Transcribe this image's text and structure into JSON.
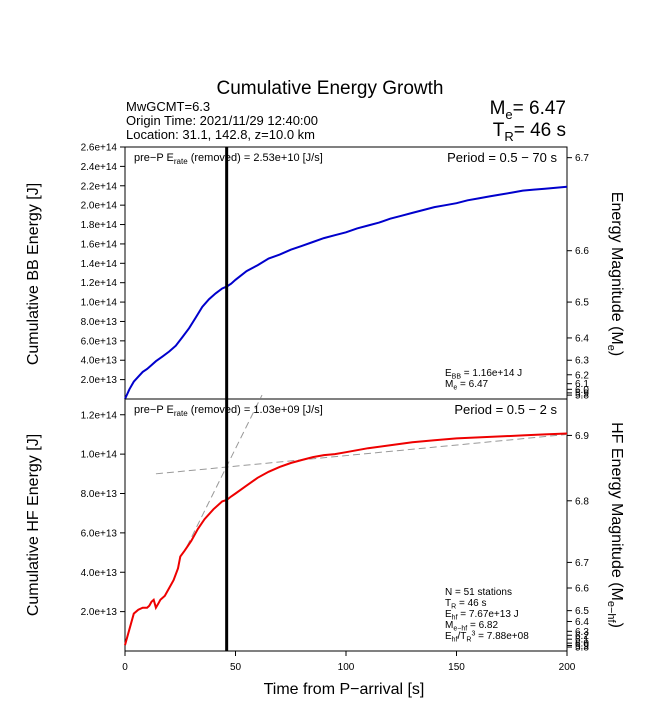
{
  "chart_data": {
    "title": "Cumulative Energy Growth",
    "info": {
      "event": "MwGCMT=6.3",
      "origin": "Origin Time: 2021/11/29 12:40:00",
      "location": "Location: 31.1, 142.8, z=10.0 km"
    },
    "summary": {
      "me_prefix": "M",
      "me_sub": "e",
      "me_value": "= 6.47",
      "tr_prefix": "T",
      "tr_sub": "R",
      "tr_value": "= 46 s"
    },
    "xlabel": "Time from P−arrival [s]",
    "xlim": [
      0,
      200
    ],
    "x_ticks": [
      "0",
      "50",
      "100",
      "150",
      "200"
    ],
    "x_tick_values": [
      0,
      50,
      100,
      150,
      200
    ],
    "vline_x": 46,
    "panels": [
      {
        "type": "line",
        "ylabel": "Cumulative BB Energy [J]",
        "y2label": "Energy Magnitude (M",
        "y2label_sub": "e",
        "y2label_end": ")",
        "ylim": [
          0,
          260000000000000.0
        ],
        "y_ticks": [
          "2.0e+13",
          "4.0e+13",
          "6.0e+13",
          "8.0e+13",
          "1.0e+14",
          "1.2e+14",
          "1.4e+14",
          "1.6e+14",
          "1.8e+14",
          "2.0e+14",
          "2.2e+14",
          "2.4e+14",
          "2.6e+14"
        ],
        "y_tick_values": [
          20000000000000.0,
          40000000000000.0,
          60000000000000.0,
          80000000000000.0,
          100000000000000.0,
          120000000000000.0,
          140000000000000.0,
          160000000000000.0,
          180000000000000.0,
          200000000000000.0,
          220000000000000.0,
          240000000000000.0,
          260000000000000.0
        ],
        "y2_ticks": [
          "6.7",
          "6.6",
          "6.5",
          "6.4",
          "6.3",
          "6.2",
          "6.1",
          "6.0",
          "5.9",
          "5.8"
        ],
        "y2_tick_values": [
          249000000000000.0,
          153000000000000.0,
          100000000000000.0,
          63000000000000.0,
          40000000000000.0,
          25000000000000.0,
          15800000000000.0,
          10000000000000.0,
          6300000000000.0,
          4000000000000.0
        ],
        "prep_label": "pre−P E",
        "prep_sub": "rate",
        "prep_rest": " (removed) = 2.53e+10 [J/s]",
        "period": "Period = 0.5 − 70 s",
        "notes": [
          {
            "main": "E",
            "sub": "BB",
            "rest": " = 1.16e+14 J"
          },
          {
            "main": "M",
            "sub": "e",
            "rest": " = 6.47"
          }
        ],
        "series": {
          "color": "#0000cc",
          "x": [
            0,
            2,
            4,
            6,
            8,
            10,
            12,
            14,
            17,
            20,
            23,
            26,
            29,
            32,
            35,
            38,
            41,
            44,
            46,
            48,
            50,
            55,
            60,
            65,
            70,
            75,
            80,
            85,
            90,
            95,
            100,
            105,
            110,
            115,
            120,
            125,
            130,
            135,
            140,
            145,
            150,
            155,
            160,
            165,
            170,
            175,
            180,
            185,
            190,
            195,
            200
          ],
          "y": [
            0,
            10000000000000.0,
            18000000000000.0,
            23000000000000.0,
            28000000000000.0,
            31000000000000.0,
            35000000000000.0,
            39000000000000.0,
            44000000000000.0,
            49000000000000.0,
            55000000000000.0,
            64000000000000.0,
            73000000000000.0,
            84000000000000.0,
            95000000000000.0,
            103000000000000.0,
            109000000000000.0,
            114000000000000.0,
            116000000000000.0,
            119000000000000.0,
            123000000000000.0,
            132000000000000.0,
            138000000000000.0,
            145000000000000.0,
            149000000000000.0,
            154000000000000.0,
            158000000000000.0,
            162000000000000.0,
            166000000000000.0,
            169000000000000.0,
            172000000000000.0,
            176000000000000.0,
            179000000000000.0,
            182000000000000.0,
            186000000000000.0,
            189000000000000.0,
            192000000000000.0,
            195000000000000.0,
            198000000000000.0,
            200000000000000.0,
            202000000000000.0,
            205000000000000.0,
            207000000000000.0,
            209000000000000.0,
            211000000000000.0,
            213000000000000.0,
            215000000000000.0,
            216000000000000.0,
            217000000000000.0,
            218000000000000.0,
            219000000000000.0
          ]
        }
      },
      {
        "type": "line",
        "ylabel": "Cumulative HF Energy [J]",
        "y2label": "HF Energy Magnitude (M",
        "y2label_sub": "e−hf",
        "y2label_end": ")",
        "ylim": [
          0,
          128000000000000.0
        ],
        "y_ticks": [
          "2.0e+13",
          "4.0e+13",
          "6.0e+13",
          "8.0e+13",
          "1.0e+14",
          "1.2e+14"
        ],
        "y_tick_values": [
          20000000000000.0,
          40000000000000.0,
          60000000000000.0,
          80000000000000.0,
          100000000000000.0,
          120000000000000.0
        ],
        "y2_ticks": [
          "6.9",
          "6.8",
          "6.7",
          "6.6",
          "6.5",
          "6.4",
          "6.3",
          "6.2",
          "6.1",
          "6.0",
          "5.9",
          "5.8"
        ],
        "y2_tick_values": [
          109500000000000.0,
          76300000000000.0,
          45000000000000.0,
          32000000000000.0,
          20500000000000.0,
          15000000000000.0,
          10000000000000.0,
          8000000000000.0,
          6000000000000.0,
          4000000000000.0,
          2800000000000.0,
          2000000000000.0
        ],
        "prep_label": "pre−P E",
        "prep_sub": "rate",
        "prep_rest": " (removed) = 1.03e+09 [J/s]",
        "period": "Period = 0.5 − 2 s",
        "notes": [
          {
            "main": "N = 51 stations",
            "sub": "",
            "rest": ""
          },
          {
            "main": "T",
            "sub": "R",
            "rest": " = 46  s"
          },
          {
            "main": "E",
            "sub": "hf",
            "rest": " = 7.67e+13 J"
          },
          {
            "main": "M",
            "sub": "e−hf",
            "rest": " = 6.82"
          },
          {
            "main": "E",
            "sub": "hf",
            "rest": "/T",
            "sub2": "R",
            "sup": "3",
            "rest2": " =  7.88e+08"
          }
        ],
        "dashed_lines": [
          {
            "x": [
              14,
              200
            ],
            "y": [
              90000000000000.0,
              110000000000000.0
            ]
          },
          {
            "x": [
              28,
              62
            ],
            "y": [
              53000000000000.0,
              130000000000000.0
            ]
          }
        ],
        "series": {
          "color": "#ee0000",
          "x": [
            0,
            2,
            4,
            6,
            8,
            10,
            11,
            12,
            13,
            14,
            15,
            16,
            18,
            20,
            22,
            24,
            25,
            27,
            30,
            33,
            36,
            40,
            44,
            46,
            48,
            50,
            55,
            60,
            65,
            70,
            75,
            80,
            85,
            90,
            95,
            100,
            110,
            120,
            130,
            140,
            150,
            160,
            170,
            180,
            190,
            200
          ],
          "y": [
            3000000000000.0,
            11000000000000.0,
            19000000000000.0,
            21000000000000.0,
            22000000000000.0,
            22000000000000.0,
            23000000000000.0,
            25000000000000.0,
            26000000000000.0,
            22000000000000.0,
            24000000000000.0,
            26000000000000.0,
            28000000000000.0,
            32000000000000.0,
            36000000000000.0,
            42000000000000.0,
            48000000000000.0,
            51000000000000.0,
            56000000000000.0,
            62000000000000.0,
            67000000000000.0,
            72000000000000.0,
            76000000000000.0,
            76700000000000.0,
            78500000000000.0,
            80000000000000.0,
            84000000000000.0,
            88000000000000.0,
            91000000000000.0,
            93500000000000.0,
            95500000000000.0,
            97000000000000.0,
            98500000000000.0,
            99500000000000.0,
            100000000000000.0,
            101000000000000.0,
            103000000000000.0,
            104500000000000.0,
            106000000000000.0,
            107000000000000.0,
            108000000000000.0,
            108500000000000.0,
            109000000000000.0,
            109500000000000.0,
            110000000000000.0,
            110500000000000.0
          ]
        }
      }
    ]
  }
}
